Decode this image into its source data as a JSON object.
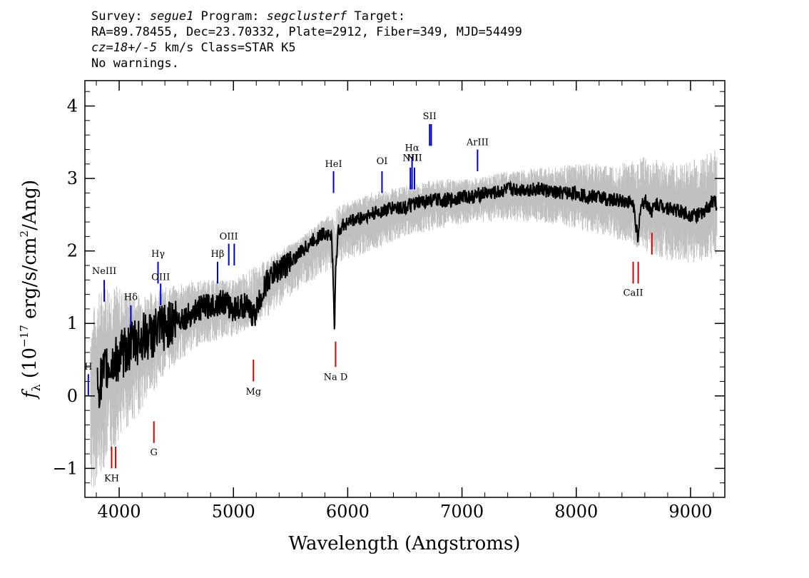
{
  "header": {
    "line1": {
      "survey_label": "Survey: ",
      "survey": "segue1",
      "program_label": " Program: ",
      "program": "segclusterf",
      "target_label": " Target:"
    },
    "line2": "RA=89.78455, Dec=23.70332, Plate=2912, Fiber=349, MJD=54499",
    "line3": {
      "cz": "cz=18+/-5",
      "rest": " km/s Class=STAR K5"
    },
    "line4": "No warnings."
  },
  "chart_data": {
    "type": "line",
    "xlabel": "Wavelength (Angstroms)",
    "ylabel": "f_λ (10^-17 erg/s/cm^2/Ang)",
    "ylabel_parts": {
      "f": "f",
      "lambda": "λ",
      "open": " (10",
      "exp1": "−17",
      "mid": " erg/s/cm",
      "exp2": "2",
      "close": "/Ang)"
    },
    "xlim": [
      3700,
      9300
    ],
    "ylim": [
      -1.4,
      4.35
    ],
    "x_ticks": [
      4000,
      5000,
      6000,
      7000,
      8000,
      9000
    ],
    "x_tick_labels": [
      "4000",
      "5000",
      "6000",
      "7000",
      "8000",
      "9000"
    ],
    "y_ticks": [
      -1,
      0,
      1,
      2,
      3,
      4
    ],
    "y_tick_labels": [
      "−1",
      "0",
      "1",
      "2",
      "3",
      "4"
    ],
    "series": [
      {
        "role": "flux",
        "color": "#000000",
        "x": [
          3810,
          3850,
          3900,
          3950,
          4000,
          4050,
          4100,
          4150,
          4200,
          4300,
          4400,
          4500,
          4600,
          4700,
          4800,
          4900,
          5000,
          5100,
          5180,
          5250,
          5300,
          5400,
          5500,
          5600,
          5700,
          5800,
          5860,
          5885,
          5895,
          5920,
          6000,
          6100,
          6200,
          6300,
          6400,
          6500,
          6600,
          6700,
          6800,
          6900,
          7000,
          7100,
          7200,
          7300,
          7400,
          7500,
          7600,
          7700,
          7800,
          7900,
          8000,
          8100,
          8200,
          8300,
          8400,
          8500,
          8542,
          8560,
          8600,
          8662,
          8700,
          8800,
          8900,
          9000,
          9100,
          9150,
          9200,
          9230
        ],
        "y": [
          0.1,
          0.25,
          0.4,
          0.45,
          0.55,
          0.6,
          0.7,
          0.75,
          0.8,
          0.85,
          0.95,
          1.05,
          1.1,
          1.2,
          1.25,
          1.3,
          1.2,
          1.25,
          1.1,
          1.4,
          1.6,
          1.75,
          1.85,
          2.0,
          2.15,
          2.25,
          2.2,
          0.9,
          1.8,
          2.3,
          2.4,
          2.45,
          2.5,
          2.55,
          2.6,
          2.6,
          2.65,
          2.7,
          2.7,
          2.7,
          2.75,
          2.75,
          2.8,
          2.8,
          2.85,
          2.85,
          2.85,
          2.85,
          2.8,
          2.8,
          2.8,
          2.75,
          2.75,
          2.7,
          2.7,
          2.65,
          2.1,
          2.6,
          2.7,
          2.55,
          2.65,
          2.6,
          2.55,
          2.5,
          2.5,
          2.6,
          2.7,
          2.65
        ]
      },
      {
        "role": "error",
        "color": "#c0c0c0",
        "x": [
          3750,
          3800,
          3900,
          4000,
          4200,
          4400,
          4700,
          5000,
          5300,
          5600,
          5900,
          6200,
          6500,
          6800,
          7100,
          7400,
          7700,
          8000,
          8300,
          8600,
          8900,
          9230
        ],
        "y_upper": [
          1.0,
          1.4,
          1.6,
          1.5,
          1.4,
          1.5,
          1.6,
          1.6,
          1.9,
          2.2,
          2.6,
          2.8,
          2.9,
          3.0,
          3.0,
          3.1,
          3.15,
          3.2,
          3.2,
          3.3,
          3.2,
          3.4
        ],
        "y_lower": [
          -1.4,
          -1.2,
          -0.9,
          -0.6,
          -0.2,
          0.3,
          0.7,
          0.8,
          1.1,
          1.5,
          1.8,
          2.0,
          2.2,
          2.3,
          2.4,
          2.4,
          2.4,
          2.3,
          2.2,
          2.0,
          1.8,
          1.9
        ]
      }
    ],
    "emission_lines": [
      {
        "label": "H",
        "x": 3730,
        "y0": 0,
        "y1": 0.3,
        "label_y": 0.36
      },
      {
        "label": "NeIII",
        "x": 3869,
        "y0": 1.3,
        "y1": 1.6,
        "label_y": 1.68
      },
      {
        "label": "Hδ",
        "x": 4102,
        "y0": 0.95,
        "y1": 1.25,
        "label_y": 1.32
      },
      {
        "label": "Hγ",
        "x": 4340,
        "y0": 1.55,
        "y1": 1.85,
        "label_y": 1.92
      },
      {
        "label": "OIII",
        "x": 4363,
        "y0": 1.25,
        "y1": 1.55,
        "label_y": 1.6
      },
      {
        "label": "Hβ",
        "x": 4861,
        "y0": 1.55,
        "y1": 1.85,
        "label_y": 1.92
      },
      {
        "label": "OIII",
        "x": 4959,
        "y0": 1.8,
        "y1": 2.1,
        "label_y": 2.16
      },
      {
        "label": "",
        "x": 5007,
        "y0": 1.8,
        "y1": 2.1,
        "label_y": 2.16
      },
      {
        "label": "HeI",
        "x": 5876,
        "y0": 2.8,
        "y1": 3.1,
        "label_y": 3.16
      },
      {
        "label": "OI",
        "x": 6300,
        "y0": 2.8,
        "y1": 3.1,
        "label_y": 3.2
      },
      {
        "label": "NII",
        "x": 6548,
        "y0": 2.85,
        "y1": 3.15,
        "label_y": 3.24
      },
      {
        "label": "Hα",
        "x": 6563,
        "y0": 2.85,
        "y1": 3.3,
        "label_y": 3.38
      },
      {
        "label": "NII",
        "x": 6584,
        "y0": 2.85,
        "y1": 3.15,
        "label_y": 3.24
      },
      {
        "label": "SII",
        "x": 6717,
        "y0": 3.45,
        "y1": 3.75,
        "label_y": 3.82
      },
      {
        "label": "",
        "x": 6731,
        "y0": 3.45,
        "y1": 3.75,
        "label_y": 3.82
      },
      {
        "label": "ArIII",
        "x": 7136,
        "y0": 3.1,
        "y1": 3.4,
        "label_y": 3.46
      }
    ],
    "absorption_lines": [
      {
        "label": "KH",
        "x": 3934,
        "y0": -1.0,
        "y1": -0.7,
        "label_y": -1.18
      },
      {
        "label": "",
        "x": 3969,
        "y0": -1.0,
        "y1": -0.7,
        "label_y": -1.18
      },
      {
        "label": "G",
        "x": 4304,
        "y0": -0.65,
        "y1": -0.35,
        "label_y": -0.82
      },
      {
        "label": "Mg",
        "x": 5175,
        "y0": 0.2,
        "y1": 0.5,
        "label_y": 0.02
      },
      {
        "label": "Na D",
        "x": 5894,
        "y0": 0.4,
        "y1": 0.75,
        "label_y": 0.22
      },
      {
        "label": "CaII",
        "x": 8498,
        "y0": 1.55,
        "y1": 1.85,
        "label_y": 1.38
      },
      {
        "label": "",
        "x": 8542,
        "y0": 1.55,
        "y1": 1.85,
        "label_y": 1.38
      },
      {
        "label": "",
        "x": 8662,
        "y0": 1.95,
        "y1": 2.25,
        "label_y": 1.38
      }
    ],
    "line_colors": {
      "emission": "#0000cc",
      "absorption": "#dd0000"
    }
  }
}
